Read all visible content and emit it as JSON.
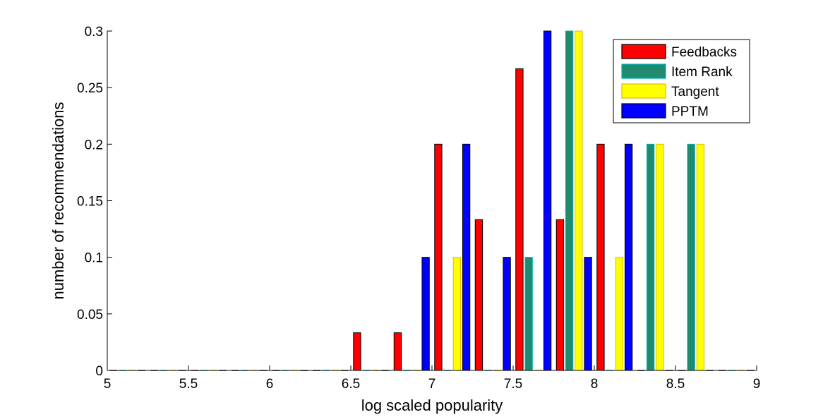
{
  "chart_data": {
    "type": "bar",
    "xlabel": "log scaled popularity",
    "ylabel": "number of recommendations",
    "xlim": [
      5,
      9
    ],
    "ylim": [
      0,
      0.3
    ],
    "xticks": [
      "5",
      "5.5",
      "6",
      "6.5",
      "7",
      "7.5",
      "8",
      "8.5",
      "9"
    ],
    "yticks": [
      "0",
      "0.05",
      "0.1",
      "0.15",
      "0.2",
      "0.25",
      "0.3"
    ],
    "grid": false,
    "legend_position": "top-right",
    "bin_centers": [
      5.125,
      5.375,
      5.625,
      5.875,
      6.125,
      6.375,
      6.625,
      6.875,
      7.125,
      7.375,
      7.625,
      7.875,
      8.125,
      8.375,
      8.625,
      8.875
    ],
    "series": [
      {
        "name": "Feedbacks",
        "color": "#ff0000",
        "edge": "#000000",
        "values": [
          0,
          0,
          0,
          0,
          0,
          0,
          0.0333,
          0.0333,
          0.2,
          0.1333,
          0.2667,
          0.1333,
          0.2,
          0,
          0,
          0
        ]
      },
      {
        "name": "Item Rank",
        "color": "#1f8a6e",
        "edge": "#00b3b3",
        "values": [
          0,
          0,
          0,
          0,
          0,
          0,
          0,
          0,
          0,
          0,
          0.1,
          0.3,
          0,
          0.2,
          0.2,
          0
        ]
      },
      {
        "name": "Tangent",
        "color": "#ffff00",
        "edge": "#e6b800",
        "values": [
          0,
          0,
          0,
          0,
          0,
          0,
          0,
          0,
          0.1,
          0,
          0,
          0.3,
          0.1,
          0.2,
          0.2,
          0
        ]
      },
      {
        "name": "PPTM",
        "color": "#0000ff",
        "edge": "#000000",
        "values": [
          0,
          0,
          0,
          0,
          0,
          0,
          0,
          0.1,
          0.2,
          0.1,
          0.3,
          0.1,
          0.2,
          0,
          0,
          0
        ]
      }
    ]
  }
}
